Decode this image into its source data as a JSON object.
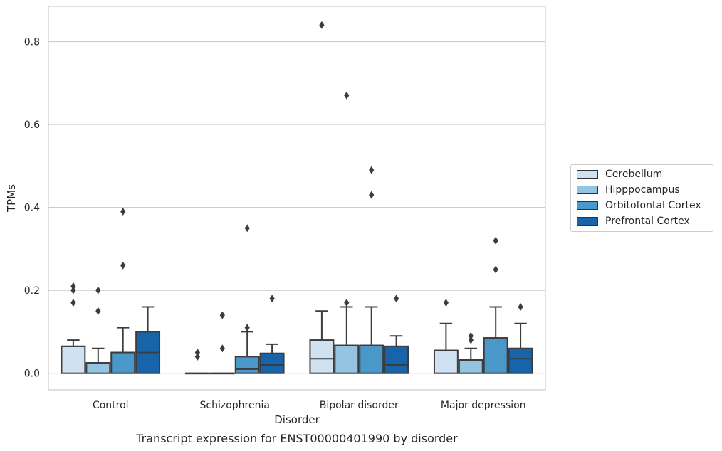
{
  "chart_data": {
    "type": "box",
    "title": "Transcript expression for ENST00000401990 by disorder",
    "xlabel": "Disorder",
    "ylabel": "TPMs",
    "ylim": [
      -0.04,
      0.885
    ],
    "yticks": [
      0.0,
      0.2,
      0.4,
      0.6,
      0.8
    ],
    "ytick_labels": [
      "0.0",
      "0.2",
      "0.4",
      "0.6",
      "0.8"
    ],
    "grid": "horizontal",
    "legend_position": "right",
    "categories": [
      "Control",
      "Schizophrenia",
      "Bipolar disorder",
      "Major depression"
    ],
    "series": [
      {
        "name": "Cerebellum",
        "color": "#d0e1f2",
        "boxes": [
          {
            "q1": 0.0,
            "median": 0.065,
            "q3": 0.065,
            "whisker_low": 0.0,
            "whisker_high": 0.08,
            "outliers": [
              0.21,
              0.2,
              0.17
            ]
          },
          {
            "q1": 0.0,
            "median": 0.0,
            "q3": 0.0,
            "whisker_low": 0.0,
            "whisker_high": 0.0,
            "outliers": [
              0.05,
              0.04
            ]
          },
          {
            "q1": 0.0,
            "median": 0.035,
            "q3": 0.08,
            "whisker_low": 0.0,
            "whisker_high": 0.15,
            "outliers": [
              0.84
            ]
          },
          {
            "q1": 0.0,
            "median": 0.055,
            "q3": 0.055,
            "whisker_low": 0.0,
            "whisker_high": 0.12,
            "outliers": [
              0.17
            ]
          }
        ]
      },
      {
        "name": "Hipppocampus",
        "color": "#94c4df",
        "boxes": [
          {
            "q1": 0.0,
            "median": 0.025,
            "q3": 0.025,
            "whisker_low": 0.0,
            "whisker_high": 0.06,
            "outliers": [
              0.2,
              0.15
            ]
          },
          {
            "q1": 0.0,
            "median": 0.0,
            "q3": 0.0,
            "whisker_low": 0.0,
            "whisker_high": 0.0,
            "outliers": [
              0.14,
              0.06
            ]
          },
          {
            "q1": 0.0,
            "median": 0.067,
            "q3": 0.067,
            "whisker_low": 0.0,
            "whisker_high": 0.16,
            "outliers": [
              0.67,
              0.17
            ]
          },
          {
            "q1": 0.0,
            "median": 0.032,
            "q3": 0.032,
            "whisker_low": 0.0,
            "whisker_high": 0.06,
            "outliers": [
              0.09,
              0.08
            ]
          }
        ]
      },
      {
        "name": "Orbitofontal Cortex",
        "color": "#4a98c9",
        "boxes": [
          {
            "q1": 0.0,
            "median": 0.05,
            "q3": 0.05,
            "whisker_low": 0.0,
            "whisker_high": 0.11,
            "outliers": [
              0.39,
              0.26
            ]
          },
          {
            "q1": 0.0,
            "median": 0.01,
            "q3": 0.04,
            "whisker_low": 0.0,
            "whisker_high": 0.1,
            "outliers": [
              0.35,
              0.11
            ]
          },
          {
            "q1": 0.0,
            "median": 0.067,
            "q3": 0.067,
            "whisker_low": 0.0,
            "whisker_high": 0.16,
            "outliers": [
              0.49,
              0.43
            ]
          },
          {
            "q1": 0.0,
            "median": 0.085,
            "q3": 0.085,
            "whisker_low": 0.0,
            "whisker_high": 0.16,
            "outliers": [
              0.32,
              0.25
            ]
          }
        ]
      },
      {
        "name": "Prefrontal Cortex",
        "color": "#1764ab",
        "boxes": [
          {
            "q1": 0.0,
            "median": 0.05,
            "q3": 0.1,
            "whisker_low": 0.0,
            "whisker_high": 0.16,
            "outliers": []
          },
          {
            "q1": 0.0,
            "median": 0.02,
            "q3": 0.048,
            "whisker_low": 0.0,
            "whisker_high": 0.07,
            "outliers": [
              0.18
            ]
          },
          {
            "q1": 0.0,
            "median": 0.02,
            "q3": 0.065,
            "whisker_low": 0.0,
            "whisker_high": 0.09,
            "outliers": [
              0.18
            ]
          },
          {
            "q1": 0.0,
            "median": 0.035,
            "q3": 0.06,
            "whisker_low": 0.0,
            "whisker_high": 0.12,
            "outliers": [
              0.16
            ]
          }
        ]
      }
    ]
  }
}
